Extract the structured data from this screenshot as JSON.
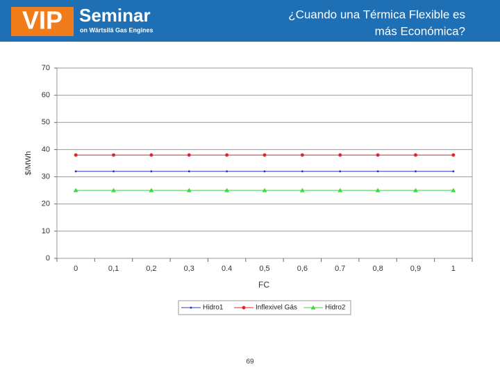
{
  "header": {
    "logo": "VIP",
    "brand": "Seminar",
    "tagline": "on Wärtsilä Gas Engines",
    "title_lines": [
      "¿Cuando una Térmica Flexible es",
      "más Económica?"
    ]
  },
  "page_number": "69",
  "chart_data": {
    "type": "line",
    "x_label": "FC",
    "y_label": "$/MWh",
    "categories": [
      "0",
      "0,1",
      "0,2",
      "0,3",
      "0.4",
      "0,5",
      "0,6",
      "0.7",
      "0,8",
      "0,9",
      "1"
    ],
    "series": [
      {
        "name": "Hidro1",
        "color": "#2b3fb8",
        "marker": "dot",
        "values": [
          32,
          32,
          32,
          32,
          32,
          32,
          32,
          32,
          32,
          32,
          32
        ]
      },
      {
        "name": "Inflexivel Gás",
        "color": "#e0262a",
        "marker": "circle",
        "values": [
          38,
          38,
          38,
          38,
          38,
          38,
          38,
          38,
          38,
          38,
          38
        ]
      },
      {
        "name": "Hidro2",
        "color": "#3fd63f",
        "marker": "triangle",
        "values": [
          25,
          25,
          25,
          25,
          25,
          25,
          25,
          25,
          25,
          25,
          25
        ]
      }
    ],
    "ylim": [
      0,
      70
    ],
    "yticks": [
      0,
      10,
      20,
      30,
      40,
      50,
      60,
      70
    ],
    "grid": true,
    "legend": "bottom"
  }
}
